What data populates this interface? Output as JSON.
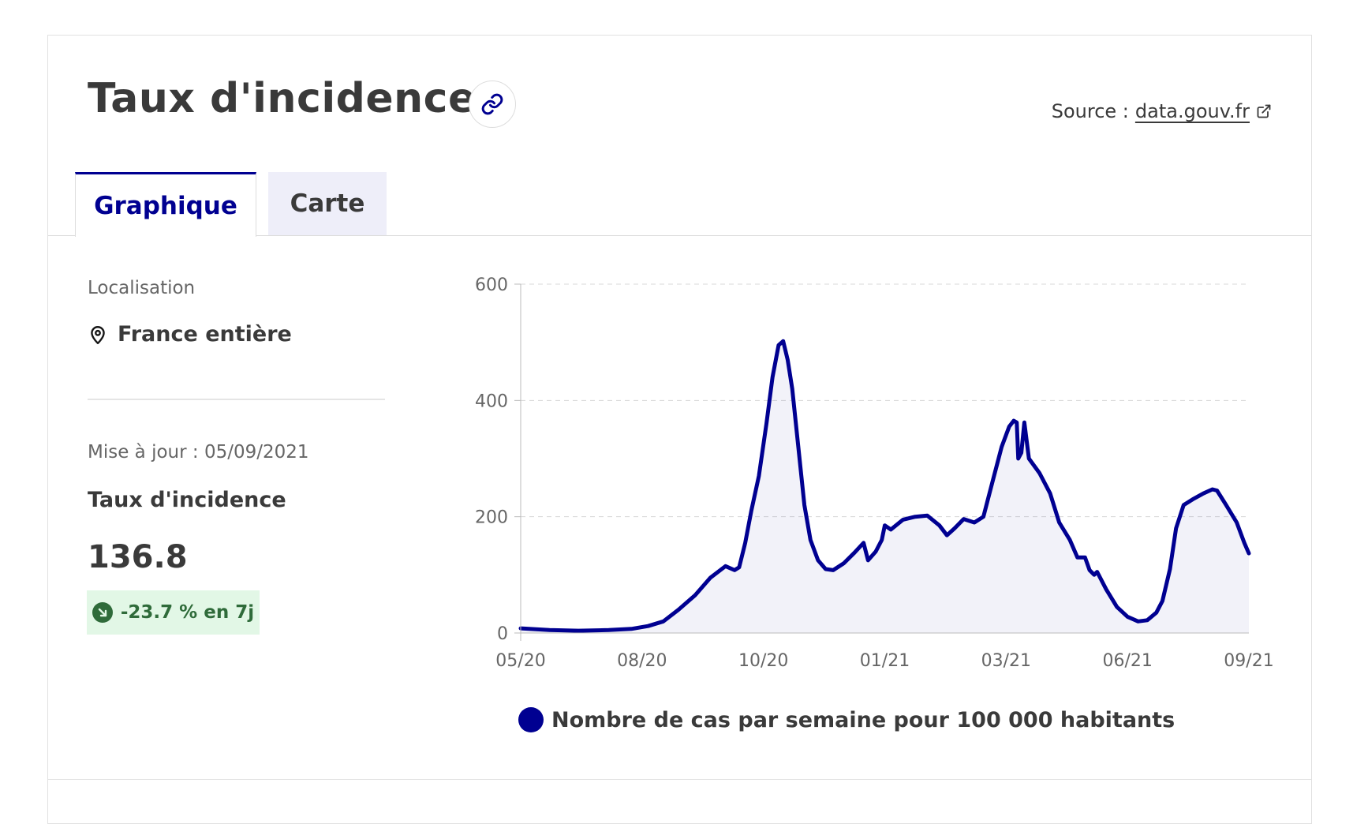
{
  "header": {
    "title": "Taux d'incidence",
    "source_label": "Source :",
    "source_link": "data.gouv.fr"
  },
  "tabs": [
    {
      "label": "Graphique",
      "selected": true
    },
    {
      "label": "Carte",
      "selected": false
    }
  ],
  "sidebar": {
    "location_label": "Localisation",
    "location_value": "France entière",
    "update_text": "Mise à jour : 05/09/2021",
    "metric_name": "Taux d'incidence",
    "metric_value": "136.8",
    "trend_text": "-23.7 % en 7j"
  },
  "icons": {
    "link": "link-icon",
    "external": "external-link-icon",
    "location": "location-pin-icon",
    "trend": "arrow-down-right-icon"
  },
  "colors": {
    "primary": "#000091",
    "badge_bg": "#e2f7e6",
    "badge_text": "#2f6b3a",
    "tab_inactive_bg": "#eeeef9"
  },
  "chart_data": {
    "type": "area",
    "title": "",
    "xlabel": "",
    "ylabel": "",
    "ylim": [
      0,
      600
    ],
    "y_ticks": [
      0,
      200,
      400,
      600
    ],
    "x_tick_labels": [
      "05/20",
      "08/20",
      "10/20",
      "01/21",
      "03/21",
      "06/21",
      "09/21"
    ],
    "x_tick_dates": [
      "2020-05-13",
      "2020-08-01",
      "2020-10-20",
      "2021-01-08",
      "2021-03-29",
      "2021-06-17",
      "2021-09-05"
    ],
    "grid": true,
    "legend_position": "bottom",
    "series": [
      {
        "name": "Nombre de cas par semaine pour 100 000 habitants",
        "color": "#000091",
        "points": [
          [
            "2020-05-13",
            8
          ],
          [
            "2020-06-01",
            5
          ],
          [
            "2020-06-20",
            4
          ],
          [
            "2020-07-10",
            5
          ],
          [
            "2020-07-25",
            7
          ],
          [
            "2020-08-05",
            12
          ],
          [
            "2020-08-15",
            20
          ],
          [
            "2020-08-25",
            40
          ],
          [
            "2020-09-05",
            65
          ],
          [
            "2020-09-15",
            95
          ],
          [
            "2020-09-25",
            115
          ],
          [
            "2020-10-01",
            108
          ],
          [
            "2020-10-04",
            113
          ],
          [
            "2020-10-08",
            155
          ],
          [
            "2020-10-12",
            210
          ],
          [
            "2020-10-17",
            270
          ],
          [
            "2020-10-22",
            360
          ],
          [
            "2020-10-26",
            440
          ],
          [
            "2020-10-30",
            495
          ],
          [
            "2020-11-02",
            502
          ],
          [
            "2020-11-05",
            470
          ],
          [
            "2020-11-08",
            420
          ],
          [
            "2020-11-12",
            320
          ],
          [
            "2020-11-16",
            220
          ],
          [
            "2020-11-20",
            160
          ],
          [
            "2020-11-25",
            125
          ],
          [
            "2020-11-30",
            110
          ],
          [
            "2020-12-05",
            108
          ],
          [
            "2020-12-12",
            120
          ],
          [
            "2020-12-19",
            138
          ],
          [
            "2020-12-25",
            155
          ],
          [
            "2020-12-28",
            125
          ],
          [
            "2021-01-02",
            140
          ],
          [
            "2021-01-06",
            160
          ],
          [
            "2021-01-08",
            185
          ],
          [
            "2021-01-12",
            178
          ],
          [
            "2021-01-20",
            195
          ],
          [
            "2021-01-28",
            200
          ],
          [
            "2021-02-05",
            202
          ],
          [
            "2021-02-13",
            185
          ],
          [
            "2021-02-18",
            168
          ],
          [
            "2021-02-23",
            180
          ],
          [
            "2021-03-01",
            196
          ],
          [
            "2021-03-08",
            190
          ],
          [
            "2021-03-14",
            200
          ],
          [
            "2021-03-20",
            260
          ],
          [
            "2021-03-26",
            320
          ],
          [
            "2021-03-31",
            355
          ],
          [
            "2021-04-03",
            365
          ],
          [
            "2021-04-05",
            362
          ],
          [
            "2021-04-06",
            300
          ],
          [
            "2021-04-08",
            310
          ],
          [
            "2021-04-10",
            362
          ],
          [
            "2021-04-13",
            300
          ],
          [
            "2021-04-20",
            275
          ],
          [
            "2021-04-27",
            240
          ],
          [
            "2021-05-03",
            190
          ],
          [
            "2021-05-10",
            160
          ],
          [
            "2021-05-15",
            130
          ],
          [
            "2021-05-20",
            130
          ],
          [
            "2021-05-23",
            108
          ],
          [
            "2021-05-26",
            100
          ],
          [
            "2021-05-28",
            105
          ],
          [
            "2021-06-03",
            75
          ],
          [
            "2021-06-10",
            45
          ],
          [
            "2021-06-17",
            28
          ],
          [
            "2021-06-24",
            20
          ],
          [
            "2021-06-30",
            22
          ],
          [
            "2021-07-06",
            35
          ],
          [
            "2021-07-10",
            55
          ],
          [
            "2021-07-15",
            110
          ],
          [
            "2021-07-19",
            180
          ],
          [
            "2021-07-24",
            220
          ],
          [
            "2021-07-30",
            230
          ],
          [
            "2021-08-06",
            240
          ],
          [
            "2021-08-12",
            247
          ],
          [
            "2021-08-15",
            245
          ],
          [
            "2021-08-21",
            220
          ],
          [
            "2021-08-28",
            190
          ],
          [
            "2021-09-02",
            155
          ],
          [
            "2021-09-05",
            137
          ]
        ]
      }
    ]
  }
}
